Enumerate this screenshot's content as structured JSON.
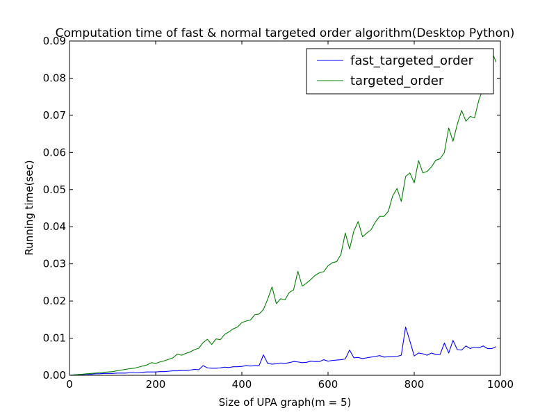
{
  "chart_data": {
    "type": "line",
    "title": "Computation time of fast & normal targeted order algorithm(Desktop Python)",
    "xlabel": "Size of UPA graph(m = 5)",
    "ylabel": "Running time(sec)",
    "xlim": [
      0,
      1000
    ],
    "ylim": [
      0,
      0.09
    ],
    "xticks": [
      0,
      200,
      400,
      600,
      800,
      1000
    ],
    "xtick_labels": [
      "0",
      "200",
      "400",
      "600",
      "800",
      "1000"
    ],
    "yticks": [
      0,
      0.01,
      0.02,
      0.03,
      0.04,
      0.05,
      0.06,
      0.07,
      0.08,
      0.09
    ],
    "ytick_labels": [
      "0.00",
      "0.01",
      "0.02",
      "0.03",
      "0.04",
      "0.05",
      "0.06",
      "0.07",
      "0.08",
      "0.09"
    ],
    "grid": false,
    "legend_position": "top-right",
    "x": [
      10,
      20,
      30,
      40,
      50,
      60,
      70,
      80,
      90,
      100,
      110,
      120,
      130,
      140,
      150,
      160,
      170,
      180,
      190,
      200,
      210,
      220,
      230,
      240,
      250,
      260,
      270,
      280,
      290,
      300,
      310,
      320,
      330,
      340,
      350,
      360,
      370,
      380,
      390,
      400,
      410,
      420,
      430,
      440,
      450,
      460,
      470,
      480,
      490,
      500,
      510,
      520,
      530,
      540,
      550,
      560,
      570,
      580,
      590,
      600,
      610,
      620,
      630,
      640,
      650,
      660,
      670,
      680,
      690,
      700,
      710,
      720,
      730,
      740,
      750,
      760,
      770,
      780,
      790,
      800,
      810,
      820,
      830,
      840,
      850,
      860,
      870,
      880,
      890,
      900,
      910,
      920,
      930,
      940,
      950,
      960,
      970,
      980,
      990
    ],
    "series": [
      {
        "name": "fast_targeted_order",
        "color": "#0000ff",
        "values": [
          0.0001,
          0.0002,
          0.0002,
          0.0003,
          0.0003,
          0.0004,
          0.0004,
          0.0005,
          0.0005,
          0.0005,
          0.0006,
          0.0006,
          0.0006,
          0.0007,
          0.0007,
          0.0007,
          0.0008,
          0.0009,
          0.0009,
          0.0009,
          0.001,
          0.001,
          0.0011,
          0.0012,
          0.0012,
          0.0013,
          0.0013,
          0.0014,
          0.0016,
          0.0015,
          0.0026,
          0.002,
          0.0019,
          0.0019,
          0.002,
          0.0022,
          0.0021,
          0.0023,
          0.0023,
          0.0024,
          0.0026,
          0.0025,
          0.0026,
          0.0026,
          0.0055,
          0.0032,
          0.003,
          0.0031,
          0.0033,
          0.0032,
          0.0034,
          0.0037,
          0.0036,
          0.0034,
          0.0035,
          0.0038,
          0.0037,
          0.0037,
          0.0042,
          0.0038,
          0.004,
          0.0041,
          0.0042,
          0.0044,
          0.0068,
          0.0047,
          0.0048,
          0.0045,
          0.0047,
          0.0049,
          0.0051,
          0.0053,
          0.0049,
          0.005,
          0.005,
          0.0051,
          0.0054,
          0.013,
          0.0092,
          0.0052,
          0.006,
          0.0058,
          0.0054,
          0.006,
          0.0056,
          0.0056,
          0.0087,
          0.006,
          0.0094,
          0.0069,
          0.0068,
          0.0079,
          0.0072,
          0.0076,
          0.0074,
          0.0079,
          0.0072,
          0.0072,
          0.0077
        ]
      },
      {
        "name": "targeted_order",
        "color": "#008000",
        "values": [
          0.0001,
          0.0002,
          0.0003,
          0.0004,
          0.0005,
          0.0006,
          0.0007,
          0.0008,
          0.0009,
          0.001,
          0.0012,
          0.0014,
          0.0016,
          0.0018,
          0.0019,
          0.0022,
          0.0025,
          0.0028,
          0.0034,
          0.0032,
          0.0036,
          0.0039,
          0.0043,
          0.0047,
          0.0057,
          0.0054,
          0.0059,
          0.0063,
          0.0069,
          0.0073,
          0.0088,
          0.0097,
          0.0083,
          0.0098,
          0.0096,
          0.011,
          0.0117,
          0.0125,
          0.013,
          0.0142,
          0.0146,
          0.0149,
          0.0163,
          0.0165,
          0.0177,
          0.0205,
          0.0238,
          0.0193,
          0.0206,
          0.0203,
          0.0223,
          0.023,
          0.028,
          0.024,
          0.0248,
          0.0258,
          0.0269,
          0.0276,
          0.0279,
          0.0295,
          0.0303,
          0.0306,
          0.0326,
          0.0383,
          0.034,
          0.0389,
          0.0414,
          0.0373,
          0.0383,
          0.0392,
          0.0413,
          0.0428,
          0.0428,
          0.0442,
          0.0483,
          0.0503,
          0.0468,
          0.0535,
          0.0545,
          0.0518,
          0.0578,
          0.0545,
          0.0549,
          0.0561,
          0.0579,
          0.0583,
          0.06,
          0.0666,
          0.063,
          0.0676,
          0.0713,
          0.0684,
          0.0697,
          0.0693,
          0.0741,
          0.0772,
          0.0795,
          0.0872,
          0.0843
        ]
      }
    ]
  }
}
